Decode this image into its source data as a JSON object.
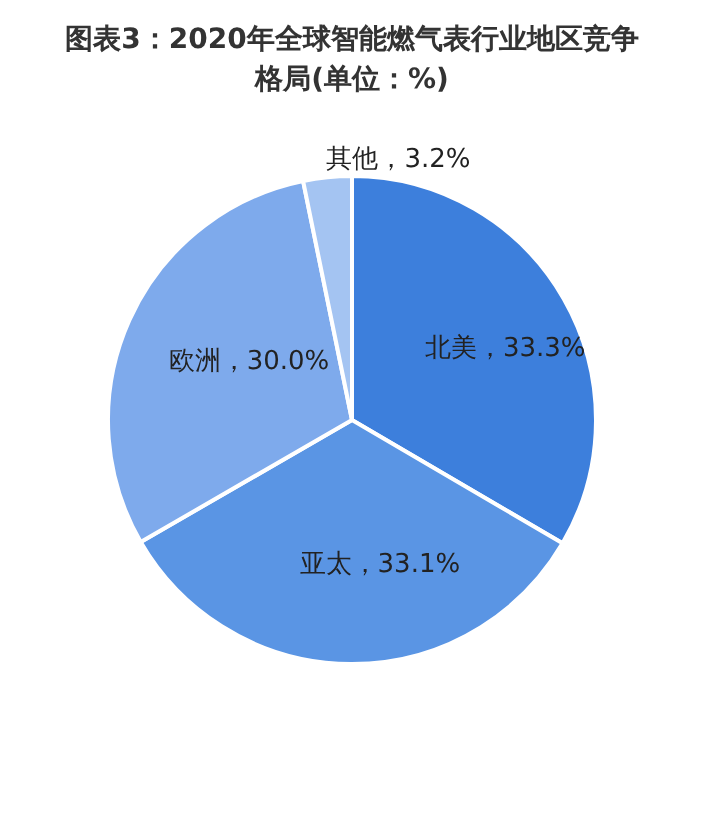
{
  "chart_data": {
    "type": "pie",
    "title": "图表3：2020年全球智能燃气表行业地区竞争格局(单位：%)",
    "categories": [
      "北美",
      "亚太",
      "欧洲",
      "其他"
    ],
    "values": [
      33.3,
      33.1,
      30.0,
      3.2
    ],
    "colors": [
      "#3d7fdc",
      "#5a95e4",
      "#7eaaec",
      "#a4c4f2"
    ],
    "value_labels": [
      "，33.3%",
      "，33.1%",
      "，30.0%",
      "，3.2%"
    ],
    "legend": false
  }
}
